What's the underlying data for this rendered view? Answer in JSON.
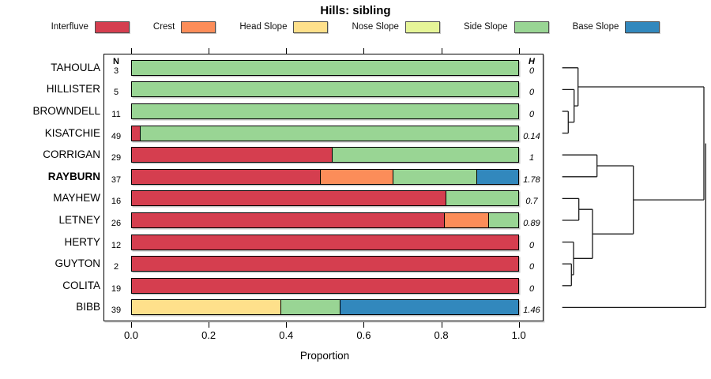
{
  "title": "Hills: sibling",
  "columns": {
    "n_header": "N",
    "h_header": "H"
  },
  "axis": {
    "xlabel": "Proportion",
    "tick_labels": [
      "0.0",
      "0.2",
      "0.4",
      "0.6",
      "0.8",
      "1.0"
    ],
    "tick_values": [
      0,
      0.2,
      0.4,
      0.6,
      0.8,
      1.0
    ],
    "xlim": [
      0,
      1
    ]
  },
  "legend": [
    {
      "key": "interfluve",
      "label": "Interfluve",
      "color": "#D53E4F"
    },
    {
      "key": "crest",
      "label": "Crest",
      "color": "#FC8D59"
    },
    {
      "key": "head_slope",
      "label": "Head Slope",
      "color": "#FEE08B"
    },
    {
      "key": "nose_slope",
      "label": "Nose Slope",
      "color": "#E6F598"
    },
    {
      "key": "side_slope",
      "label": "Side Slope",
      "color": "#99D594"
    },
    {
      "key": "base_slope",
      "label": "Base Slope",
      "color": "#3288BD"
    }
  ],
  "chart_data": {
    "type": "bar",
    "variant": "horizontal_stacked_proportion",
    "title": "Hills: sibling",
    "xlabel": "Proportion",
    "xlim": [
      0,
      1
    ],
    "grid": false,
    "legend_position": "top",
    "classes": [
      "Interfluve",
      "Crest",
      "Head Slope",
      "Nose Slope",
      "Side Slope",
      "Base Slope"
    ],
    "rows": [
      {
        "label": "TAHOULA",
        "n": 3,
        "h": "0",
        "bold": false,
        "segments": [
          {
            "class": "side_slope",
            "value": 1.0
          }
        ]
      },
      {
        "label": "HILLISTER",
        "n": 5,
        "h": "0",
        "bold": false,
        "segments": [
          {
            "class": "side_slope",
            "value": 1.0
          }
        ]
      },
      {
        "label": "BROWNDELL",
        "n": 11,
        "h": "0",
        "bold": false,
        "segments": [
          {
            "class": "side_slope",
            "value": 1.0
          }
        ]
      },
      {
        "label": "KISATCHIE",
        "n": 49,
        "h": "0.14",
        "bold": false,
        "segments": [
          {
            "class": "interfluve",
            "value": 0.02
          },
          {
            "class": "side_slope",
            "value": 0.98
          }
        ]
      },
      {
        "label": "CORRIGAN",
        "n": 29,
        "h": "1",
        "bold": false,
        "segments": [
          {
            "class": "interfluve",
            "value": 0.517
          },
          {
            "class": "side_slope",
            "value": 0.483
          }
        ]
      },
      {
        "label": "RAYBURN",
        "n": 37,
        "h": "1.78",
        "bold": true,
        "segments": [
          {
            "class": "interfluve",
            "value": 0.486
          },
          {
            "class": "crest",
            "value": 0.19
          },
          {
            "class": "side_slope",
            "value": 0.216
          },
          {
            "class": "base_slope",
            "value": 0.108
          }
        ]
      },
      {
        "label": "MAYHEW",
        "n": 16,
        "h": "0.7",
        "bold": false,
        "segments": [
          {
            "class": "interfluve",
            "value": 0.812
          },
          {
            "class": "side_slope",
            "value": 0.188
          }
        ]
      },
      {
        "label": "LETNEY",
        "n": 26,
        "h": "0.89",
        "bold": false,
        "segments": [
          {
            "class": "interfluve",
            "value": 0.808
          },
          {
            "class": "crest",
            "value": 0.115
          },
          {
            "class": "side_slope",
            "value": 0.077
          }
        ]
      },
      {
        "label": "HERTY",
        "n": 12,
        "h": "0",
        "bold": false,
        "segments": [
          {
            "class": "interfluve",
            "value": 1.0
          }
        ]
      },
      {
        "label": "GUYTON",
        "n": 2,
        "h": "0",
        "bold": false,
        "segments": [
          {
            "class": "interfluve",
            "value": 1.0
          }
        ]
      },
      {
        "label": "COLITA",
        "n": 19,
        "h": "0",
        "bold": false,
        "segments": [
          {
            "class": "interfluve",
            "value": 1.0
          }
        ]
      },
      {
        "label": "BIBB",
        "n": 39,
        "h": "1.46",
        "bold": false,
        "segments": [
          {
            "class": "head_slope",
            "value": 0.385
          },
          {
            "class": "side_slope",
            "value": 0.154
          },
          {
            "class": "base_slope",
            "value": 0.461
          }
        ]
      }
    ],
    "dendrogram": {
      "leaf_order": [
        "TAHOULA",
        "HILLISTER",
        "BROWNDELL",
        "KISATCHIE",
        "CORRIGAN",
        "RAYBURN",
        "MAYHEW",
        "LETNEY",
        "HERTY",
        "GUYTON",
        "COLITA",
        "BIBB"
      ],
      "h_segments": [
        [
          711.7,
          85.8,
          731.7
        ],
        [
          711.7,
          113.4,
          726.7
        ],
        [
          711.7,
          141.0,
          719.3
        ],
        [
          711.7,
          168.6,
          719.3
        ],
        [
          719.3,
          154.8,
          726.7
        ],
        [
          726.7,
          134.1,
          731.7
        ],
        [
          731.7,
          110.0,
          891.0
        ],
        [
          711.7,
          196.2,
          755.7
        ],
        [
          711.7,
          223.8,
          755.7
        ],
        [
          755.7,
          210.0,
          801.7
        ],
        [
          711.7,
          251.4,
          732.7
        ],
        [
          711.7,
          279.0,
          732.7
        ],
        [
          732.7,
          265.2,
          750.0
        ],
        [
          711.7,
          306.6,
          726.0
        ],
        [
          711.7,
          334.2,
          723.3
        ],
        [
          711.7,
          361.8,
          723.3
        ],
        [
          723.3,
          348.0,
          726.0
        ],
        [
          726.0,
          327.3,
          750.0
        ],
        [
          750.0,
          296.3,
          801.7
        ],
        [
          801.7,
          253.1,
          891.0
        ],
        [
          711.7,
          389.4,
          893.3
        ]
      ],
      "v_segments": [
        [
          719.3,
          141.0,
          168.6
        ],
        [
          726.7,
          113.4,
          154.8
        ],
        [
          731.7,
          85.8,
          134.1
        ],
        [
          755.7,
          196.2,
          223.8
        ],
        [
          732.7,
          251.4,
          279.0
        ],
        [
          723.3,
          334.2,
          361.8
        ],
        [
          726.0,
          306.6,
          348.0
        ],
        [
          750.0,
          265.2,
          327.3
        ],
        [
          801.7,
          210.0,
          296.3
        ],
        [
          891.0,
          110.0,
          253.1
        ],
        [
          893.3,
          181.6,
          389.4
        ]
      ]
    }
  }
}
